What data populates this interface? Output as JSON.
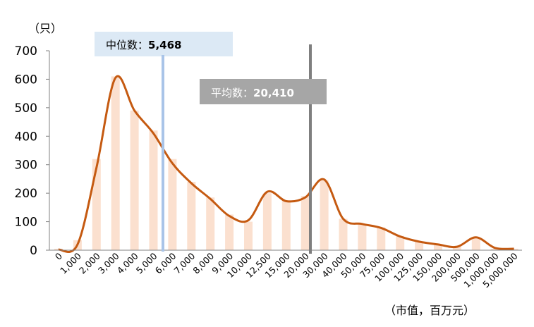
{
  "chart_data": {
    "type": "bar",
    "categories": [
      "0",
      "1,000",
      "2,000",
      "3,000",
      "4,000",
      "5,000",
      "6,000",
      "7,000",
      "8,000",
      "9,000",
      "10,000",
      "12,500",
      "15,000",
      "20,000",
      "30,000",
      "40,000",
      "50,000",
      "75,000",
      "100,000",
      "125,000",
      "150,000",
      "200,000",
      "500,000",
      "1,000,000",
      "5,000,000"
    ],
    "values": [
      5,
      35,
      320,
      610,
      490,
      420,
      320,
      240,
      185,
      125,
      100,
      200,
      175,
      190,
      245,
      110,
      90,
      80,
      50,
      30,
      20,
      12,
      45,
      5,
      5
    ],
    "curve_values": [
      2,
      20,
      290,
      605,
      490,
      410,
      305,
      235,
      180,
      120,
      105,
      205,
      172,
      185,
      248,
      110,
      92,
      78,
      48,
      30,
      20,
      12,
      45,
      8,
      5
    ],
    "ylim": [
      0,
      700
    ],
    "yticks": [
      "0",
      "100",
      "200",
      "300",
      "400",
      "500",
      "600",
      "700"
    ],
    "ylabel": "（只）",
    "xlabel": "（市值，百万元）",
    "grid": false,
    "annotations": [
      {
        "label": "中位数：",
        "value": "5,468",
        "position_value": 5468
      },
      {
        "label": "平均数：",
        "value": "20,410",
        "position_value": 20410
      }
    ],
    "colors": {
      "bars": "#fbe0cf",
      "curve": "#c55a11",
      "median_line": "#a9c4e8",
      "median_box": "#dce9f5",
      "mean_line": "#7f7f7f",
      "mean_box": "#a6a6a6"
    }
  }
}
